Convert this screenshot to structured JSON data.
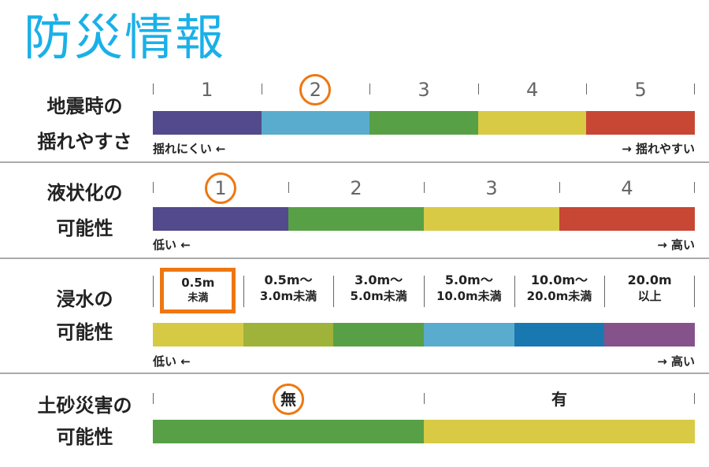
{
  "title": "防災情報",
  "accent": "#ee7711",
  "sections": [
    {
      "label1": "地震時の",
      "label2": "揺れやすさ",
      "levels": [
        "1",
        "2",
        "3",
        "4",
        "5"
      ],
      "selected": 1,
      "colors": [
        "#524a8c",
        "#5aacce",
        "#58a046",
        "#d8ca44",
        "#c84634"
      ],
      "low": "揺れにくい ←",
      "high": "→ 揺れやすい"
    },
    {
      "label1": "液状化の",
      "label2": "可能性",
      "levels": [
        "1",
        "2",
        "3",
        "4"
      ],
      "selected": 0,
      "colors": [
        "#524a8c",
        "#58a046",
        "#d8ca44",
        "#c84634"
      ],
      "low": "低い ←",
      "high": "→ 高い"
    },
    {
      "label1": "浸水の",
      "label2": "可能性",
      "levels": [
        [
          "0.5m",
          "未満"
        ],
        [
          "0.5m～",
          "3.0m未満"
        ],
        [
          "3.0m～",
          "5.0m未満"
        ],
        [
          "5.0m～",
          "10.0m未満"
        ],
        [
          "10.0m～",
          "20.0m未満"
        ],
        [
          "20.0m",
          "以上"
        ]
      ],
      "selected": 0,
      "colors": [
        "#d6ca44",
        "#9fb23a",
        "#58a046",
        "#5aacce",
        "#1a78b0",
        "#86528c"
      ],
      "low": "低い ←",
      "high": "→ 高い"
    },
    {
      "label1": "土砂災害の",
      "label2": "可能性",
      "levels": [
        "無",
        "有"
      ],
      "selected": 0,
      "colors": [
        "#58a046",
        "#d8ca44"
      ]
    }
  ]
}
